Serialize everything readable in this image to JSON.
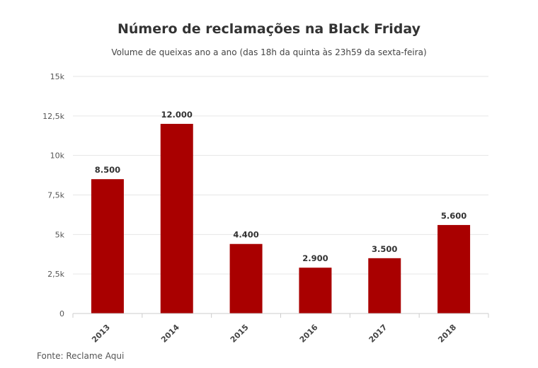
{
  "chart_data": {
    "type": "bar",
    "title": "Número de reclamações na Black Friday",
    "subtitle": "Volume de queixas ano a ano (das 18h da quinta às 23h59 da sexta-feira)",
    "categories": [
      "2013",
      "2014",
      "2015",
      "2016",
      "2017",
      "2018"
    ],
    "values": [
      8500,
      12000,
      4400,
      2900,
      3500,
      5600
    ],
    "data_labels": [
      "8.500",
      "12.000",
      "4.400",
      "2.900",
      "3.500",
      "5.600"
    ],
    "ylim": [
      0,
      15000
    ],
    "yticks": [
      0,
      2500,
      5000,
      7500,
      10000,
      12500,
      15000
    ],
    "ytick_labels": [
      "0",
      "2,5k",
      "5k",
      "7,5k",
      "10k",
      "12,5k",
      "15k"
    ],
    "grid": true,
    "bar_color": "#a90000",
    "grid_color": "#e6e6e6",
    "axis_color": "#cccccc"
  },
  "source": "Fonte: Reclame Aqui"
}
